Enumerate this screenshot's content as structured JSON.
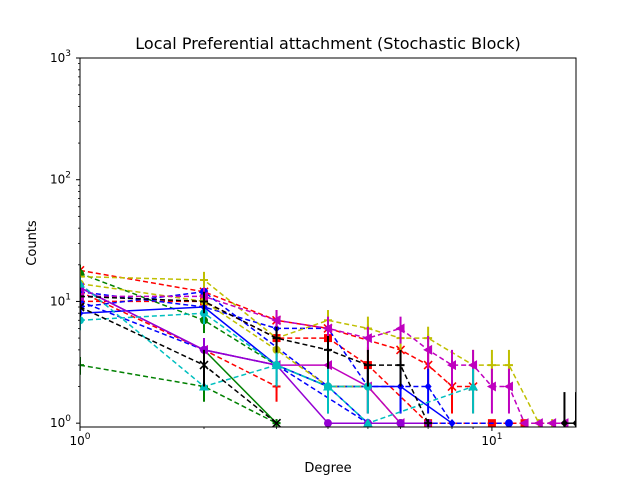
{
  "chart_data": {
    "type": "line",
    "title": "Local Preferential attachment (Stochastic Block)",
    "xlabel": "Degree",
    "ylabel": "Counts",
    "xscale": "log",
    "yscale": "log",
    "xlim": [
      1,
      16
    ],
    "ylim": [
      0.93,
      1000
    ],
    "grid": false,
    "legend": "none",
    "x_ticks": [
      {
        "value": 1,
        "base": "10",
        "exp": "0"
      },
      {
        "value": 10,
        "base": "10",
        "exp": "1"
      }
    ],
    "y_ticks": [
      {
        "value": 1,
        "base": "10",
        "exp": "0"
      },
      {
        "value": 10,
        "base": "10",
        "exp": "1"
      },
      {
        "value": 100,
        "base": "10",
        "exp": "2"
      },
      {
        "value": 1000,
        "base": "10",
        "exp": "3"
      }
    ],
    "series": [
      {
        "color": "#ff0000",
        "dash": true,
        "marker": "square",
        "x": [
          1,
          2,
          3,
          4,
          5,
          7,
          10,
          12
        ],
        "y": [
          10,
          10,
          5,
          5,
          3,
          1,
          1,
          1
        ],
        "err": [
          2,
          2,
          1.5,
          1.5,
          1.2,
          0,
          0,
          0
        ]
      },
      {
        "color": "#ff0000",
        "dash": true,
        "marker": "x",
        "x": [
          1,
          2,
          3,
          4,
          6,
          7,
          8,
          9
        ],
        "y": [
          18,
          12,
          7,
          6,
          4,
          3,
          2,
          2
        ],
        "err": [
          2,
          2,
          1.5,
          1.5,
          1,
          1,
          0.8,
          0.8
        ]
      },
      {
        "color": "#ff0000",
        "dash": true,
        "marker": "plus",
        "x": [
          1,
          2,
          3
        ],
        "y": [
          12,
          4,
          2
        ],
        "err": [
          2,
          1,
          0.5
        ]
      },
      {
        "color": "#008000",
        "dash": true,
        "marker": "circle",
        "x": [
          1,
          2,
          3,
          4,
          5
        ],
        "y": [
          17,
          7,
          3,
          2,
          2
        ],
        "err": [
          3,
          1.5,
          1,
          0.8,
          0.8
        ]
      },
      {
        "color": "#008000",
        "dash": true,
        "marker": "plus",
        "x": [
          1,
          2,
          3
        ],
        "y": [
          3,
          2,
          1
        ],
        "err": [
          0.5,
          0.5,
          0
        ]
      },
      {
        "color": "#008000",
        "dash": false,
        "marker": "plus",
        "x": [
          2,
          3
        ],
        "y": [
          4,
          1
        ],
        "err": [
          1,
          0
        ]
      },
      {
        "color": "#0000ff",
        "dash": true,
        "marker": "circle",
        "x": [
          1,
          2,
          4,
          5,
          6,
          11
        ],
        "y": [
          9,
          12,
          2,
          1,
          1,
          1
        ],
        "err": [
          1.5,
          2,
          0.8,
          0,
          0,
          0
        ]
      },
      {
        "color": "#0000ff",
        "dash": true,
        "marker": "diamond",
        "x": [
          1,
          2,
          3,
          4,
          5,
          6,
          7,
          8
        ],
        "y": [
          12,
          9,
          6,
          6,
          2,
          2,
          2,
          1
        ],
        "err": [
          2,
          2,
          1.5,
          1.5,
          0.8,
          0.8,
          0.8,
          0
        ]
      },
      {
        "color": "#0000ff",
        "dash": false,
        "marker": "diamond",
        "x": [
          1,
          2,
          3,
          4,
          5,
          6,
          8
        ],
        "y": [
          8,
          9,
          3,
          2,
          2,
          2,
          1
        ],
        "err": [
          1.5,
          2,
          1,
          0.8,
          0.8,
          0.8,
          0
        ]
      },
      {
        "color": "#0000ff",
        "dash": true,
        "marker": "plus",
        "x": [
          1,
          2,
          3,
          5,
          6
        ],
        "y": [
          10,
          4,
          3,
          1,
          1
        ],
        "err": [
          1.5,
          1,
          0.8,
          0,
          0
        ]
      },
      {
        "color": "#bfbf00",
        "dash": true,
        "marker": "plus",
        "x": [
          1,
          2,
          3,
          4,
          5,
          6,
          7,
          9,
          10,
          11,
          13,
          14
        ],
        "y": [
          16,
          15,
          5,
          7,
          6,
          5,
          5,
          3,
          3,
          3,
          1,
          1
        ],
        "err": [
          2,
          2.5,
          1.5,
          1.5,
          1.5,
          1.2,
          1.2,
          1,
          1,
          1,
          0,
          0
        ]
      },
      {
        "color": "#bfbf00",
        "dash": true,
        "marker": "circle",
        "x": [
          1,
          2,
          3,
          4,
          5,
          6
        ],
        "y": [
          14,
          10,
          4,
          2,
          2,
          1
        ],
        "err": [
          2,
          2,
          1,
          0.8,
          0.8,
          0
        ]
      },
      {
        "color": "#bf00bf",
        "dash": true,
        "marker": "triangle-left",
        "x": [
          1,
          2,
          3,
          4,
          5,
          6,
          7,
          8,
          9,
          10,
          11,
          12,
          13,
          14,
          15
        ],
        "y": [
          11,
          11,
          7,
          6,
          5,
          6,
          4,
          3,
          3,
          2,
          2,
          1,
          1,
          1,
          1
        ],
        "err": [
          2,
          2,
          1.5,
          1.5,
          1.2,
          1.5,
          1.2,
          1,
          1,
          0.8,
          0.8,
          0,
          0,
          0,
          0
        ]
      },
      {
        "color": "#bf00bf",
        "dash": false,
        "marker": "triangle-left",
        "x": [
          1,
          2,
          3,
          4,
          5,
          6
        ],
        "y": [
          13,
          4,
          3,
          3,
          2,
          1
        ],
        "err": [
          2,
          1,
          0.8,
          0.8,
          0.8,
          0
        ]
      },
      {
        "color": "#9400d3",
        "dash": false,
        "marker": "circle",
        "x": [
          1,
          2,
          3,
          4,
          5,
          6,
          7
        ],
        "y": [
          13,
          4,
          3,
          1,
          1,
          1,
          1
        ],
        "err": [
          2,
          1,
          0.8,
          0,
          0,
          0,
          0
        ]
      },
      {
        "color": "#00bfbf",
        "dash": true,
        "marker": "circle",
        "x": [
          1,
          2,
          3,
          4,
          5
        ],
        "y": [
          7,
          8,
          3,
          2,
          2
        ],
        "err": [
          1.2,
          1.5,
          1,
          0.8,
          0.8
        ]
      },
      {
        "color": "#00bfbf",
        "dash": true,
        "marker": "triangle-up",
        "x": [
          1,
          2,
          3,
          4,
          5,
          9
        ],
        "y": [
          14,
          2,
          3,
          2,
          1,
          2
        ],
        "err": [
          2,
          0,
          0.8,
          0.8,
          0,
          0.8
        ]
      },
      {
        "color": "#000000",
        "dash": true,
        "marker": "plus",
        "x": [
          1,
          2,
          3,
          4,
          5,
          6,
          7
        ],
        "y": [
          11,
          10,
          5,
          4,
          3,
          3,
          1
        ],
        "err": [
          2,
          2,
          1.2,
          1.2,
          1,
          1,
          0
        ]
      },
      {
        "color": "#000000",
        "dash": true,
        "marker": "x",
        "x": [
          1,
          2,
          3
        ],
        "y": [
          9,
          3,
          1
        ],
        "err": [
          1.5,
          1,
          0
        ]
      },
      {
        "color": "#000000",
        "dash": false,
        "marker": "diamond",
        "x": [
          15,
          16
        ],
        "y": [
          1,
          1
        ],
        "err": [
          0.8,
          0.8
        ]
      }
    ]
  }
}
